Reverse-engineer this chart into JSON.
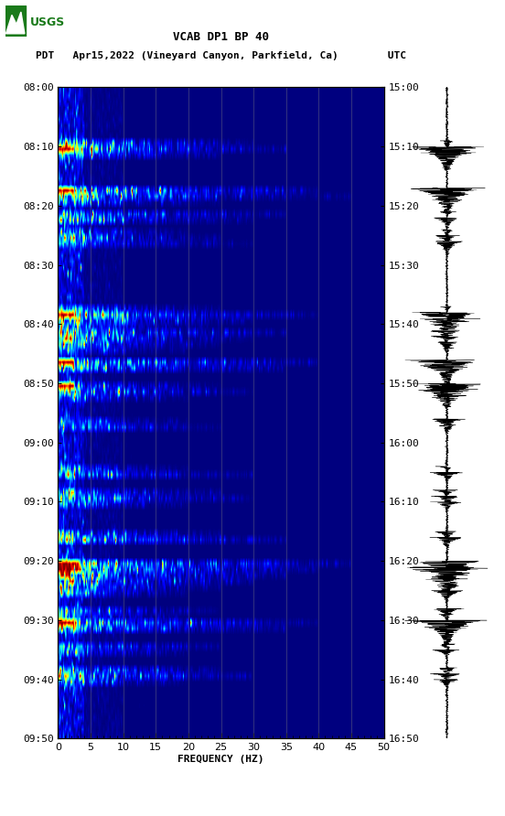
{
  "title_line1": "VCAB DP1 BP 40",
  "title_line2": "PDT   Apr15,2022 (Vineyard Canyon, Parkfield, Ca)        UTC",
  "xlabel": "FREQUENCY (HZ)",
  "left_yticks": [
    "08:00",
    "08:10",
    "08:20",
    "08:30",
    "08:40",
    "08:50",
    "09:00",
    "09:10",
    "09:20",
    "09:30",
    "09:40",
    "09:50"
  ],
  "right_yticks": [
    "15:00",
    "15:10",
    "15:20",
    "15:30",
    "15:40",
    "15:50",
    "16:00",
    "16:10",
    "16:20",
    "16:30",
    "16:40",
    "16:50"
  ],
  "wave_right_yticks": [
    "15:00",
    "15:10",
    "15:20",
    "15:30",
    "15:40",
    "15:50",
    "16:00",
    "16:10",
    "16:20",
    "16:30",
    "16:40",
    "16:50"
  ],
  "xmin": 0,
  "xmax": 50,
  "xticks": [
    0,
    5,
    10,
    15,
    20,
    25,
    30,
    35,
    40,
    45,
    50
  ],
  "n_time": 110,
  "bg_color": "#ffffff",
  "spectrogram_colormap": "jet",
  "grid_color": "#808080",
  "font_family": "monospace",
  "usgs_green": "#1a7a1a",
  "title_fontsize": 9,
  "tick_fontsize": 8
}
